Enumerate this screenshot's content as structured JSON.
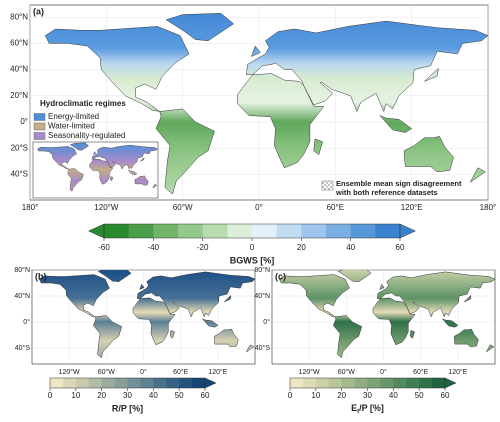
{
  "panels": [
    {
      "label": "(a)",
      "xticks": [
        {
          "value": -180,
          "label": "180°"
        },
        {
          "value": -120,
          "label": "120°W"
        },
        {
          "value": -60,
          "label": "60°W"
        },
        {
          "value": 0,
          "label": "0°"
        },
        {
          "value": 60,
          "label": "60°E"
        },
        {
          "value": 120,
          "label": "120°E"
        },
        {
          "value": 180,
          "label": "180°"
        }
      ],
      "yticks": [
        {
          "value": 80,
          "label": "80°N"
        },
        {
          "value": 60,
          "label": "60°N"
        },
        {
          "value": 40,
          "label": "40°N"
        },
        {
          "value": 20,
          "label": "20°N"
        },
        {
          "value": 0,
          "label": "0°"
        },
        {
          "value": -20,
          "label": "20°S"
        },
        {
          "value": -40,
          "label": "40°S"
        }
      ],
      "legend": {
        "title": "Hydroclimatic regimes",
        "items": [
          {
            "name": "Energy-limited",
            "color": "#4a8fd8"
          },
          {
            "name": "Water-limited",
            "color": "#c4ae88"
          },
          {
            "name": "Seasonality-regulated",
            "color": "#a98ac9"
          }
        ]
      },
      "note": [
        "Ensemble mean sign disagreement",
        "with both reference datasets"
      ],
      "colorbar": {
        "label": "BGWS [%]",
        "ticks": [
          -60,
          -40,
          -20,
          0,
          20,
          40,
          60
        ],
        "extend": "both",
        "colors": [
          "#2a8a2e",
          "#4a9e48",
          "#6fb468",
          "#94c98b",
          "#b8dcb0",
          "#dcefd8",
          "#e4f0fa",
          "#c2dcf3",
          "#9ec6ec",
          "#7aafe3",
          "#5698da",
          "#3a82d0"
        ]
      }
    },
    {
      "label": "(b)",
      "xticks": [
        {
          "value": -120,
          "label": "120°W"
        },
        {
          "value": -60,
          "label": "60°W"
        },
        {
          "value": 0,
          "label": "0°"
        },
        {
          "value": 60,
          "label": "60°E"
        },
        {
          "value": 120,
          "label": "120°E"
        }
      ],
      "yticks": [
        {
          "value": 80,
          "label": "80°N"
        },
        {
          "value": 40,
          "label": "40°N"
        },
        {
          "value": 0,
          "label": "0°"
        },
        {
          "value": -40,
          "label": "40°S"
        }
      ],
      "colorbar": {
        "label": "R/P [%]",
        "ticks": [
          0,
          10,
          20,
          30,
          40,
          50,
          60
        ],
        "extend": "max",
        "colors": [
          "#efe6c4",
          "#ddd7b6",
          "#c8c9ad",
          "#b2bba6",
          "#9caca0",
          "#879e9b",
          "#729095",
          "#5d8190",
          "#48728a",
          "#346384",
          "#22547e",
          "#134677"
        ]
      }
    },
    {
      "label": "(c)",
      "xticks": [
        {
          "value": -120,
          "label": "120°W"
        },
        {
          "value": -60,
          "label": "60°W"
        },
        {
          "value": 0,
          "label": "0°"
        },
        {
          "value": 60,
          "label": "60°E"
        },
        {
          "value": 120,
          "label": "120°E"
        }
      ],
      "yticks": [
        {
          "value": 80,
          "label": "80°N"
        },
        {
          "value": 40,
          "label": "40°N"
        },
        {
          "value": 0,
          "label": "0°"
        },
        {
          "value": -40,
          "label": "40°S"
        }
      ],
      "colorbar": {
        "label": {
          "main": "E",
          "sub": "t",
          "rest": "/P [%]"
        },
        "ticks": [
          0,
          10,
          20,
          30,
          40,
          50,
          60
        ],
        "extend": "max",
        "colors": [
          "#efe6c4",
          "#dedcb6",
          "#cbd1a7",
          "#b8c69a",
          "#a4ba8d",
          "#90ae81",
          "#7ca275",
          "#68966a",
          "#558a5f",
          "#427e55",
          "#30714b",
          "#1f6441"
        ]
      }
    }
  ]
}
